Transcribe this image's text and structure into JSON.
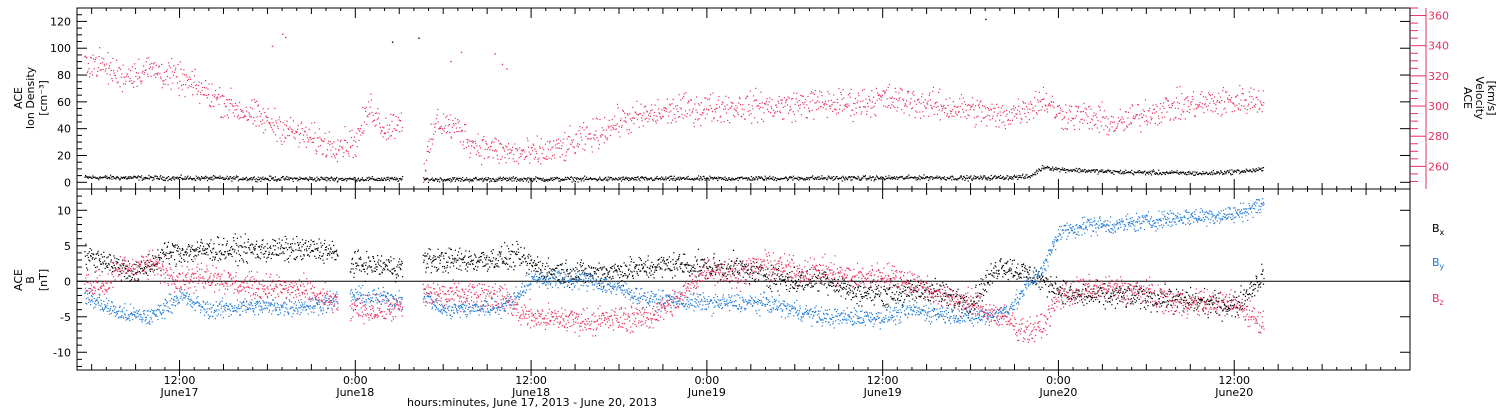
{
  "chart_data": [
    {
      "type": "scatter",
      "panel": "top",
      "left_axis": {
        "label_lines": [
          "ACE",
          "Ion Density",
          "[cm⁻³]"
        ],
        "ylim": [
          -5,
          130
        ],
        "major_ticks": [
          0,
          20,
          40,
          60,
          80,
          100,
          120
        ]
      },
      "right_axis": {
        "label_lines": [
          "ACE",
          "Velocity",
          "[km/s]"
        ],
        "ylim": [
          245,
          365
        ],
        "major_ticks": [
          260,
          280,
          300,
          320,
          340,
          360
        ],
        "color": "#e8305f"
      },
      "series": [
        {
          "axis": "left",
          "color": "#000000",
          "gaps": [
            [
              27.2,
              28.6
            ]
          ],
          "keyframes": [
            [
              5.5,
              4
            ],
            [
              12,
              3.5
            ],
            [
              20,
              3
            ],
            [
              30,
              2.5
            ],
            [
              40,
              2.8
            ],
            [
              50,
              3.2
            ],
            [
              55,
              3.5
            ],
            [
              60,
              3.5
            ],
            [
              63,
              4
            ],
            [
              66,
              3.5
            ],
            [
              70,
              4.5
            ],
            [
              71,
              12
            ],
            [
              72,
              10
            ],
            [
              76,
              8
            ],
            [
              82,
              7
            ],
            [
              85,
              9
            ],
            [
              86,
              10
            ]
          ],
          "noise": 1.2
        },
        {
          "axis": "right",
          "color": "#e8305f",
          "gaps": [
            [
              27.2,
              28.6
            ]
          ],
          "keyframes": [
            [
              5.5,
              330
            ],
            [
              6.5,
              328
            ],
            [
              8,
              320
            ],
            [
              10,
              325
            ],
            [
              12,
              318
            ],
            [
              14,
              308
            ],
            [
              16,
              298
            ],
            [
              18,
              290
            ],
            [
              20,
              282
            ],
            [
              22,
              275
            ],
            [
              24,
              276
            ],
            [
              25,
              300
            ],
            [
              26,
              285
            ],
            [
              27.2,
              292
            ],
            [
              28.6,
              255
            ],
            [
              29.5,
              290
            ],
            [
              31,
              285
            ],
            [
              32,
              275
            ],
            [
              34,
              270
            ],
            [
              36,
              268
            ],
            [
              38,
              272
            ],
            [
              40,
              280
            ],
            [
              42,
              290
            ],
            [
              44,
              294
            ],
            [
              46,
              298
            ],
            [
              50,
              300
            ],
            [
              53,
              300
            ],
            [
              55,
              302
            ],
            [
              58,
              302
            ],
            [
              60,
              305
            ],
            [
              62,
              303
            ],
            [
              64,
              300
            ],
            [
              66,
              298
            ],
            [
              68,
              293
            ],
            [
              70,
              300
            ],
            [
              71,
              305
            ],
            [
              72,
              295
            ],
            [
              74,
              293
            ],
            [
              76,
              288
            ],
            [
              78,
              296
            ],
            [
              80,
              300
            ],
            [
              82,
              302
            ],
            [
              86,
              305
            ]
          ],
          "noise": 7
        }
      ]
    },
    {
      "type": "scatter",
      "panel": "bottom",
      "left_axis": {
        "label_lines": [
          "ACE",
          "B",
          "[nT]"
        ],
        "ylim": [
          -12.5,
          13
        ],
        "major_ticks": [
          -10,
          -5,
          0,
          5,
          10
        ]
      },
      "zero_line": true,
      "series": [
        {
          "name": "Bx",
          "color": "#000000",
          "gaps": [
            [
              22.8,
              23.6
            ],
            [
              27.2,
              28.6
            ]
          ],
          "keyframes": [
            [
              5.5,
              3.5
            ],
            [
              7,
              3
            ],
            [
              9,
              1
            ],
            [
              11,
              4
            ],
            [
              14,
              4.5
            ],
            [
              18,
              4.5
            ],
            [
              22,
              4.5
            ],
            [
              23.6,
              2.5
            ],
            [
              24,
              2.5
            ],
            [
              27.2,
              2
            ],
            [
              28.6,
              3
            ],
            [
              32,
              3
            ],
            [
              35,
              3.5
            ],
            [
              37,
              1.5
            ],
            [
              40,
              1.2
            ],
            [
              44,
              2
            ],
            [
              46,
              2.5
            ],
            [
              48,
              2
            ],
            [
              50,
              2
            ],
            [
              52,
              1
            ],
            [
              54,
              0
            ],
            [
              56,
              0.5
            ],
            [
              58,
              -1.5
            ],
            [
              62,
              -1.5
            ],
            [
              63,
              -1
            ],
            [
              66,
              -3
            ],
            [
              68,
              2.5
            ],
            [
              70,
              1
            ],
            [
              71,
              0
            ],
            [
              73,
              -2
            ],
            [
              76,
              -2
            ],
            [
              80,
              -2.5
            ],
            [
              84,
              -3.5
            ],
            [
              86,
              1
            ]
          ],
          "noise": 1.2
        },
        {
          "name": "By",
          "color": "#1e7ad6",
          "gaps": [
            [
              22.8,
              23.6
            ],
            [
              27.2,
              28.6
            ]
          ],
          "keyframes": [
            [
              5.5,
              -2
            ],
            [
              8,
              -4.5
            ],
            [
              10,
              -5
            ],
            [
              12,
              -2
            ],
            [
              14,
              -4
            ],
            [
              16,
              -3.5
            ],
            [
              20,
              -3.5
            ],
            [
              22,
              -3
            ],
            [
              23.6,
              -2
            ],
            [
              24,
              -2
            ],
            [
              27.2,
              -2.5
            ],
            [
              28.6,
              -2
            ],
            [
              30,
              -4
            ],
            [
              34,
              -3.5
            ],
            [
              35,
              -2
            ],
            [
              36,
              0.5
            ],
            [
              40,
              0.2
            ],
            [
              42,
              -1
            ],
            [
              44,
              -2.5
            ],
            [
              48,
              -3
            ],
            [
              52,
              -3
            ],
            [
              54,
              -4
            ],
            [
              56,
              -5
            ],
            [
              60,
              -5
            ],
            [
              62,
              -4
            ],
            [
              66,
              -5
            ],
            [
              68,
              -4.5
            ],
            [
              69,
              -3
            ],
            [
              70,
              0
            ],
            [
              71,
              2
            ],
            [
              72,
              7
            ],
            [
              74,
              8
            ],
            [
              76,
              8
            ],
            [
              80,
              9
            ],
            [
              84,
              9.5
            ],
            [
              86,
              11
            ]
          ],
          "noise": 0.9
        },
        {
          "name": "Bz",
          "color": "#e8305f",
          "gaps": [
            [
              22.8,
              23.6
            ],
            [
              27.2,
              28.6
            ]
          ],
          "keyframes": [
            [
              5.5,
              -0.5
            ],
            [
              7,
              -0.5
            ],
            [
              8,
              2
            ],
            [
              10,
              2.5
            ],
            [
              12,
              0.5
            ],
            [
              14,
              1
            ],
            [
              16,
              -0.5
            ],
            [
              20,
              -1
            ],
            [
              22,
              -2.5
            ],
            [
              23.6,
              -4
            ],
            [
              24,
              -4
            ],
            [
              27.2,
              -3.8
            ],
            [
              28.6,
              -1.5
            ],
            [
              30,
              -2
            ],
            [
              32,
              -1.5
            ],
            [
              34,
              -2
            ],
            [
              35,
              -4
            ],
            [
              36,
              -5
            ],
            [
              40,
              -5.5
            ],
            [
              44,
              -5
            ],
            [
              46,
              -2.5
            ],
            [
              48,
              2
            ],
            [
              50,
              1
            ],
            [
              52,
              2.5
            ],
            [
              54,
              1.5
            ],
            [
              56,
              1.5
            ],
            [
              58,
              0.5
            ],
            [
              60,
              1
            ],
            [
              62,
              0
            ],
            [
              63,
              -1
            ],
            [
              64,
              -2
            ],
            [
              66,
              -3
            ],
            [
              68,
              -5
            ],
            [
              70,
              -7
            ],
            [
              71,
              -6
            ],
            [
              72,
              -2
            ],
            [
              74,
              -1
            ],
            [
              76,
              -1
            ],
            [
              78,
              -1.5
            ],
            [
              80,
              -3
            ],
            [
              82,
              -3
            ],
            [
              84,
              -3
            ],
            [
              86,
              -6
            ]
          ],
          "noise": 1.3
        }
      ],
      "legend": [
        {
          "label": "B",
          "sub": "x",
          "color": "#000000"
        },
        {
          "label": "B",
          "sub": "y",
          "color": "#1e7ad6"
        },
        {
          "label": "B",
          "sub": "z",
          "color": "#e8305f"
        }
      ]
    }
  ],
  "x_axis": {
    "range_hours": [
      5,
      96
    ],
    "major_ticks": [
      {
        "hour": 12,
        "time": "12:00",
        "date": "June17"
      },
      {
        "hour": 24,
        "time": "0:00",
        "date": "June18"
      },
      {
        "hour": 36,
        "time": "12:00",
        "date": "June18"
      },
      {
        "hour": 48,
        "time": "0:00",
        "date": "June19"
      },
      {
        "hour": 60,
        "time": "12:00",
        "date": "June19"
      },
      {
        "hour": 72,
        "time": "0:00",
        "date": "June20"
      },
      {
        "hour": 84,
        "time": "12:00",
        "date": "June20"
      }
    ],
    "xlabel": "hours:minutes, June 17, 2013 - June 20, 2013"
  },
  "stray_points": [
    {
      "panel": "top",
      "axis": "left",
      "hour": 26.5,
      "value": 105,
      "color": "#000000"
    },
    {
      "panel": "top",
      "axis": "left",
      "hour": 28.3,
      "value": 108,
      "color": "#000000"
    },
    {
      "panel": "top",
      "axis": "left",
      "hour": 67,
      "value": 122,
      "color": "#000000"
    },
    {
      "panel": "top",
      "axis": "right",
      "hour": 19,
      "value": 348,
      "color": "#e8305f"
    },
    {
      "panel": "top",
      "axis": "right",
      "hour": 19.2,
      "value": 346,
      "color": "#e8305f"
    },
    {
      "panel": "top",
      "axis": "right",
      "hour": 18.3,
      "value": 340,
      "color": "#e8305f"
    },
    {
      "panel": "top",
      "axis": "right",
      "hour": 30.5,
      "value": 330,
      "color": "#e8305f"
    },
    {
      "panel": "top",
      "axis": "right",
      "hour": 31.2,
      "value": 336,
      "color": "#e8305f"
    },
    {
      "panel": "top",
      "axis": "right",
      "hour": 33.5,
      "value": 335,
      "color": "#e8305f"
    },
    {
      "panel": "top",
      "axis": "right",
      "hour": 34,
      "value": 328,
      "color": "#e8305f"
    },
    {
      "panel": "top",
      "axis": "right",
      "hour": 34.3,
      "value": 325,
      "color": "#e8305f"
    }
  ]
}
